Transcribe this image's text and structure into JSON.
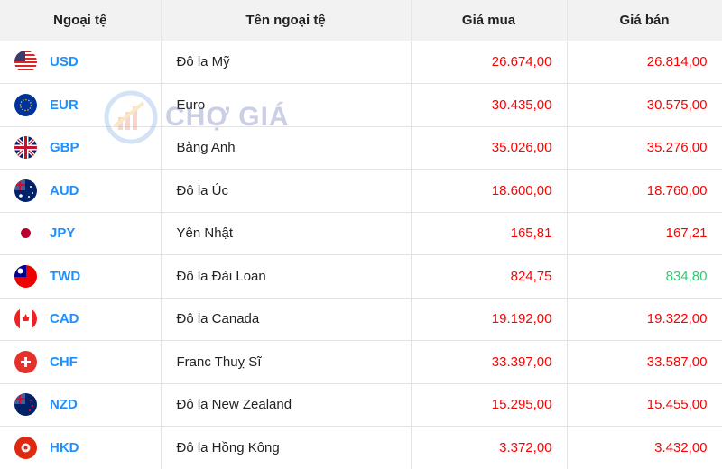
{
  "headers": [
    "Ngoại tệ",
    "Tên ngoại tệ",
    "Giá mua",
    "Giá bán"
  ],
  "watermark": "CHỢ GIÁ",
  "colors": {
    "code": "#1e90ff",
    "price": "#ff0000",
    "price_up": "#2ecc71"
  },
  "rows": [
    {
      "code": "USD",
      "name": "Đô la Mỹ",
      "buy": "26.674,00",
      "sell": "26.814,00",
      "flag": "us-flag-icon"
    },
    {
      "code": "EUR",
      "name": "Euro",
      "buy": "30.435,00",
      "sell": "30.575,00",
      "flag": "eu-flag-icon"
    },
    {
      "code": "GBP",
      "name": "Bảng Anh",
      "buy": "35.026,00",
      "sell": "35.276,00",
      "flag": "uk-flag-icon"
    },
    {
      "code": "AUD",
      "name": "Đô la Úc",
      "buy": "18.600,00",
      "sell": "18.760,00",
      "flag": "au-flag-icon"
    },
    {
      "code": "JPY",
      "name": "Yên Nhật",
      "buy": "165,81",
      "sell": "167,21",
      "flag": "jp-flag-icon"
    },
    {
      "code": "TWD",
      "name": "Đô la Đài Loan",
      "buy": "824,75",
      "sell": "834,80",
      "sell_up": true,
      "flag": "tw-flag-icon"
    },
    {
      "code": "CAD",
      "name": "Đô la Canada",
      "buy": "19.192,00",
      "sell": "19.322,00",
      "flag": "ca-flag-icon"
    },
    {
      "code": "CHF",
      "name": "Franc Thuỵ Sĩ",
      "buy": "33.397,00",
      "sell": "33.587,00",
      "flag": "ch-flag-icon"
    },
    {
      "code": "NZD",
      "name": "Đô la New Zealand",
      "buy": "15.295,00",
      "sell": "15.455,00",
      "flag": "nz-flag-icon"
    },
    {
      "code": "HKD",
      "name": "Đô la Hồng Kông",
      "buy": "3.372,00",
      "sell": "3.432,00",
      "flag": "hk-flag-icon"
    }
  ]
}
